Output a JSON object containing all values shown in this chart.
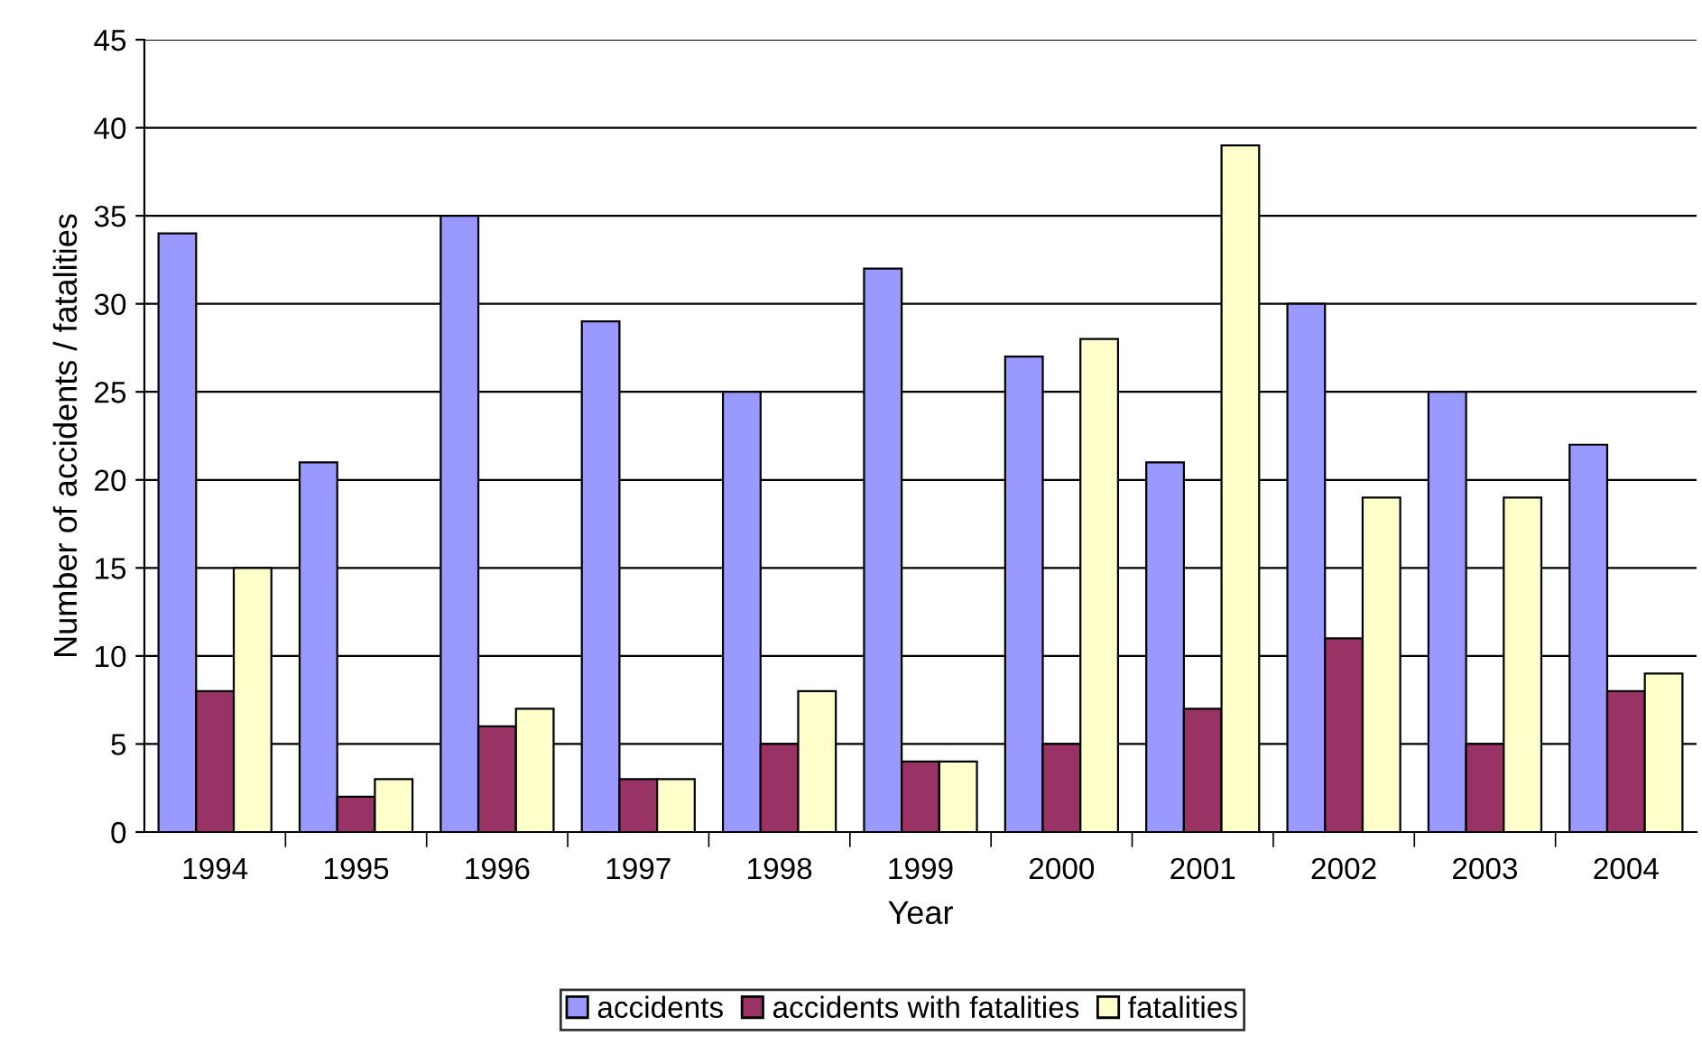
{
  "chart_data": {
    "type": "bar",
    "xlabel": "Year",
    "ylabel": "Number of accidents / fatalities",
    "categories": [
      "1994",
      "1995",
      "1996",
      "1997",
      "1998",
      "1999",
      "2000",
      "2001",
      "2002",
      "2003",
      "2004"
    ],
    "series": [
      {
        "name": "accidents",
        "color": "#9999ff",
        "values": [
          34,
          21,
          35,
          29,
          25,
          32,
          27,
          21,
          30,
          25,
          22
        ]
      },
      {
        "name": "accidents with fatalities",
        "color": "#993366",
        "values": [
          8,
          2,
          6,
          3,
          5,
          4,
          5,
          7,
          11,
          5,
          8
        ]
      },
      {
        "name": "fatalities",
        "color": "#ffffcc",
        "values": [
          15,
          3,
          7,
          3,
          8,
          4,
          28,
          39,
          19,
          19,
          9
        ]
      }
    ],
    "ylim": [
      0,
      45
    ],
    "yticks": [
      0,
      5,
      10,
      15,
      20,
      25,
      30,
      35,
      40,
      45
    ],
    "grid": "y",
    "legend": "bottom"
  }
}
